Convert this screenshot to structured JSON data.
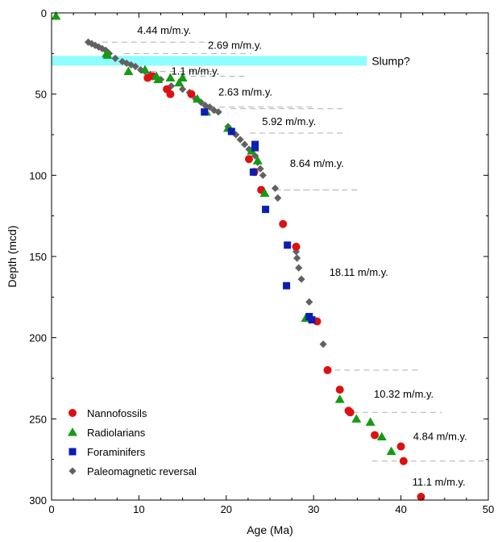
{
  "chart_data": {
    "type": "scatter",
    "xlabel": "Age (Ma)",
    "ylabel": "Depth (mcd)",
    "xlim": [
      0,
      50
    ],
    "ylim": [
      0,
      300
    ],
    "y_inverted": true,
    "x_ticks": [
      0,
      10,
      20,
      30,
      40,
      50
    ],
    "y_ticks": [
      0,
      50,
      100,
      150,
      200,
      250,
      300
    ],
    "grid": false,
    "legend_position": "bottom-left",
    "slump": {
      "label": "Slump?",
      "x_range": [
        0,
        36.1
      ],
      "depth_range": [
        26.5,
        32.5
      ],
      "color": "#8ffcff"
    },
    "series": [
      {
        "name": "Nannofossils",
        "marker": "circle",
        "color": "#dd1111",
        "points": [
          [
            11,
            40
          ],
          [
            11.6,
            39
          ],
          [
            13.2,
            47
          ],
          [
            13.6,
            50
          ],
          [
            16,
            50
          ],
          [
            22.6,
            90
          ],
          [
            23.2,
            98
          ],
          [
            24,
            109
          ],
          [
            26.5,
            130
          ],
          [
            28,
            144
          ],
          [
            30.4,
            190
          ],
          [
            31.6,
            220
          ],
          [
            33,
            232
          ],
          [
            34,
            245
          ],
          [
            34.2,
            246
          ],
          [
            37,
            260
          ],
          [
            40,
            267
          ],
          [
            40.3,
            276
          ],
          [
            42.3,
            298
          ]
        ]
      },
      {
        "name": "Radiolarians",
        "marker": "triangle",
        "color": "#149b14",
        "points": [
          [
            0.5,
            2
          ],
          [
            6.3,
            25
          ],
          [
            6.4,
            26
          ],
          [
            8.8,
            36
          ],
          [
            10.7,
            35
          ],
          [
            12,
            39
          ],
          [
            12.2,
            41
          ],
          [
            13.6,
            40
          ],
          [
            14.6,
            43
          ],
          [
            15,
            40
          ],
          [
            16.7,
            53
          ],
          [
            17.7,
            61
          ],
          [
            20.2,
            71
          ],
          [
            22.9,
            85
          ],
          [
            23.6,
            91
          ],
          [
            24.4,
            111
          ],
          [
            29.1,
            188
          ],
          [
            33,
            238
          ],
          [
            34.9,
            250
          ],
          [
            36.5,
            252
          ],
          [
            37.8,
            261
          ],
          [
            38.9,
            270
          ]
        ]
      },
      {
        "name": "Foraminifers",
        "marker": "square",
        "color": "#0b1eb4",
        "points": [
          [
            17.5,
            61
          ],
          [
            20.6,
            73
          ],
          [
            23.3,
            81
          ],
          [
            23.3,
            83
          ],
          [
            23.1,
            98
          ],
          [
            24.5,
            121
          ],
          [
            27,
            143
          ],
          [
            26.9,
            168
          ],
          [
            29.5,
            187
          ],
          [
            29.8,
            189
          ]
        ]
      },
      {
        "name": "Paleomagnetic reversal",
        "marker": "diamond",
        "color": "#616161",
        "points": [
          [
            4.2,
            18
          ],
          [
            4.6,
            19
          ],
          [
            5,
            20
          ],
          [
            5.4,
            21
          ],
          [
            5.8,
            22
          ],
          [
            6.2,
            23
          ],
          [
            6.6,
            25
          ],
          [
            7.3,
            28
          ],
          [
            8.1,
            30
          ],
          [
            8.6,
            31
          ],
          [
            9.1,
            32
          ],
          [
            9.6,
            33
          ],
          [
            10.2,
            35
          ],
          [
            10.7,
            36
          ],
          [
            11.3,
            38
          ],
          [
            12.5,
            41
          ],
          [
            13.7,
            45
          ],
          [
            15,
            47
          ],
          [
            15.8,
            49
          ],
          [
            16.5,
            53
          ],
          [
            17.1,
            55
          ],
          [
            17.6,
            57
          ],
          [
            18.1,
            58
          ],
          [
            18.6,
            60
          ],
          [
            19.1,
            61
          ],
          [
            20.2,
            70
          ],
          [
            20.5,
            72
          ],
          [
            21.1,
            75
          ],
          [
            21.6,
            78
          ],
          [
            22.1,
            81
          ],
          [
            22.6,
            84
          ],
          [
            23.3,
            88
          ],
          [
            23.6,
            92
          ],
          [
            23.9,
            96
          ],
          [
            24.2,
            100
          ],
          [
            25.6,
            108
          ],
          [
            25.9,
            114
          ],
          [
            28,
            147
          ],
          [
            28.1,
            151
          ],
          [
            28.3,
            157
          ],
          [
            28.6,
            164
          ],
          [
            29.5,
            178
          ],
          [
            31.1,
            204
          ]
        ]
      }
    ],
    "rate_labels": [
      {
        "text": "4.44 m/m.y.",
        "x": 9.8,
        "depth": 11
      },
      {
        "text": "2.69 m/m.y.",
        "x": 17.9,
        "depth": 20
      },
      {
        "text": "1.1 m/m.y.",
        "x": 13.7,
        "depth": 36
      },
      {
        "text": "2.63 m/m.y.",
        "x": 19.1,
        "depth": 49
      },
      {
        "text": "5.92 m/m.y.",
        "x": 24.1,
        "depth": 67
      },
      {
        "text": "8.64 m/m.y.",
        "x": 27.3,
        "depth": 93
      },
      {
        "text": "18.11 m/m.y.",
        "x": 31.8,
        "depth": 160
      },
      {
        "text": "10.32 m/m.y.",
        "x": 36.9,
        "depth": 235
      },
      {
        "text": "4.84 m/m.y.",
        "x": 41.4,
        "depth": 261
      },
      {
        "text": "11.1 m/m.y.",
        "x": 41.3,
        "depth": 289
      }
    ],
    "dashed_lines": [
      {
        "x1": 5.8,
        "x2": 19.1,
        "depth": 18
      },
      {
        "x1": 8.3,
        "x2": 22.9,
        "depth": 25
      },
      {
        "x1": 10.2,
        "x2": 18.5,
        "depth": 36
      },
      {
        "x1": 14.8,
        "x2": 22.5,
        "depth": 39
      },
      {
        "x1": 18.1,
        "x2": 29.8,
        "depth": 58
      },
      {
        "x1": 20.5,
        "x2": 33.5,
        "depth": 59
      },
      {
        "x1": 22.7,
        "x2": 33.8,
        "depth": 74
      },
      {
        "x1": 25.6,
        "x2": 33.2,
        "depth": 109
      },
      {
        "x1": 26.6,
        "x2": 35.4,
        "depth": 109
      },
      {
        "x1": 31.3,
        "x2": 42.1,
        "depth": 220
      },
      {
        "x1": 34.5,
        "x2": 44.7,
        "depth": 246
      },
      {
        "x1": 36.7,
        "x2": 50.1,
        "depth": 276
      }
    ]
  }
}
